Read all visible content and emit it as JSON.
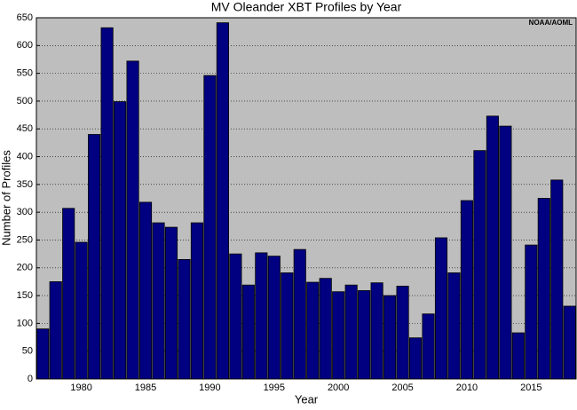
{
  "chart_data": {
    "type": "bar",
    "title": "MV Oleander XBT Profiles by Year",
    "x_label": "Year",
    "y_label": "Number of Profiles",
    "annotation": "NOAA/AOML",
    "x": [
      1977,
      1978,
      1979,
      1980,
      1981,
      1982,
      1983,
      1984,
      1985,
      1986,
      1987,
      1988,
      1989,
      1990,
      1991,
      1992,
      1993,
      1994,
      1995,
      1996,
      1997,
      1998,
      1999,
      2000,
      2001,
      2002,
      2003,
      2004,
      2005,
      2006,
      2007,
      2008,
      2009,
      2010,
      2011,
      2012,
      2013,
      2014,
      2015,
      2016,
      2017,
      2018
    ],
    "values": [
      90,
      175,
      307,
      246,
      440,
      632,
      499,
      572,
      318,
      281,
      273,
      215,
      281,
      546,
      641,
      225,
      169,
      227,
      221,
      191,
      233,
      174,
      181,
      157,
      169,
      159,
      173,
      150,
      167,
      74,
      117,
      254,
      191,
      321,
      411,
      473,
      455,
      83,
      241,
      325,
      358,
      131
    ],
    "color": "#000080",
    "background": "#bebebe",
    "xlim": [
      1976.5,
      2018.5
    ],
    "xticks": [
      1980,
      1985,
      1990,
      1995,
      2000,
      2005,
      2010,
      2015
    ],
    "ylim": [
      0,
      650
    ],
    "yticks": [
      0,
      50,
      100,
      150,
      200,
      250,
      300,
      350,
      400,
      450,
      500,
      550,
      600,
      650
    ],
    "grid": true
  }
}
